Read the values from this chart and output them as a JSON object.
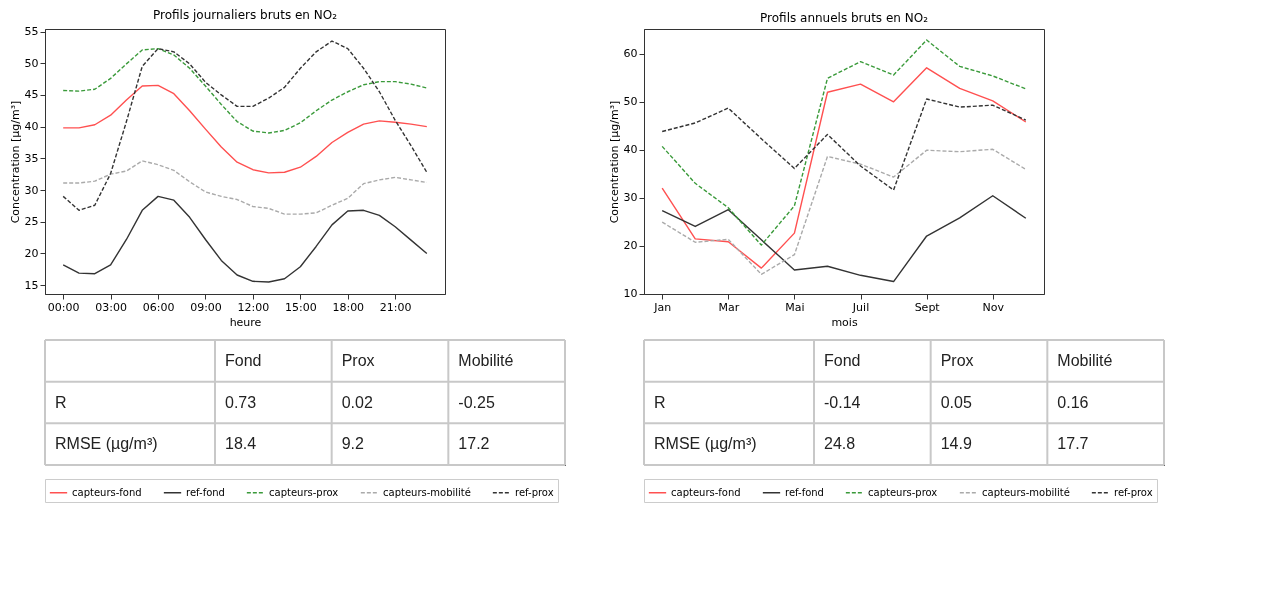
{
  "chart_data": [
    {
      "type": "line",
      "title": "Profils journaliers bruts en NO₂",
      "xlabel": "heure",
      "ylabel": "Concentration [µg/m³]",
      "x": [
        0,
        1,
        2,
        3,
        4,
        5,
        6,
        7,
        8,
        9,
        10,
        11,
        12,
        13,
        14,
        15,
        16,
        17,
        18,
        19,
        20,
        21,
        22,
        23
      ],
      "xlim": [
        -1.15,
        24.15
      ],
      "xticks": [
        {
          "value": 0,
          "label": "00:00"
        },
        {
          "value": 3,
          "label": "03:00"
        },
        {
          "value": 6,
          "label": "06:00"
        },
        {
          "value": 9,
          "label": "09:00"
        },
        {
          "value": 12,
          "label": "12:00"
        },
        {
          "value": 15,
          "label": "15:00"
        },
        {
          "value": 18,
          "label": "18:00"
        },
        {
          "value": 21,
          "label": "21:00"
        }
      ],
      "ylim": [
        13.6,
        55.4
      ],
      "yticks": [
        15,
        20,
        25,
        30,
        35,
        40,
        45,
        50,
        55
      ],
      "grid": false,
      "legend": "bottom",
      "series": [
        {
          "name": "capteurs-fond",
          "color": "#ff5050",
          "line_style": "solid",
          "values": [
            39.8,
            39.8,
            40.3,
            41.8,
            44.2,
            46.4,
            46.5,
            45.2,
            42.5,
            39.6,
            36.8,
            34.4,
            33.2,
            32.7,
            32.8,
            33.6,
            35.3,
            37.5,
            39.1,
            40.4,
            40.9,
            40.7,
            40.4,
            40.0
          ]
        },
        {
          "name": "ref-fond",
          "color": "#333333",
          "line_style": "solid",
          "values": [
            18.2,
            16.9,
            16.8,
            18.2,
            22.2,
            26.8,
            29.0,
            28.4,
            25.7,
            22.2,
            18.9,
            16.6,
            15.6,
            15.5,
            16.0,
            17.9,
            21.1,
            24.5,
            26.7,
            26.8,
            26.0,
            24.2,
            22.1,
            20.0
          ]
        },
        {
          "name": "capteurs-prox",
          "color": "#3a9a3a",
          "line_style": "dashed",
          "values": [
            45.7,
            45.6,
            45.9,
            47.6,
            49.9,
            52.1,
            52.3,
            51.3,
            49.2,
            46.4,
            43.5,
            40.8,
            39.3,
            39.0,
            39.4,
            40.6,
            42.5,
            44.2,
            45.5,
            46.6,
            47.1,
            47.1,
            46.7,
            46.1
          ]
        },
        {
          "name": "capteurs-mobilité",
          "color": "#aaaaaa",
          "line_style": "dashed",
          "values": [
            31.1,
            31.1,
            31.4,
            32.5,
            33.0,
            34.6,
            34.0,
            33.1,
            31.3,
            29.7,
            29.0,
            28.5,
            27.4,
            27.1,
            26.2,
            26.2,
            26.4,
            27.6,
            28.7,
            31.0,
            31.6,
            32.0,
            31.6,
            31.2
          ]
        },
        {
          "name": "ref-prox",
          "color": "#333333",
          "line_style": "dashed",
          "values": [
            29.0,
            26.8,
            27.6,
            32.6,
            40.8,
            49.5,
            52.3,
            51.8,
            49.9,
            47.0,
            45.0,
            43.2,
            43.2,
            44.5,
            46.2,
            49.2,
            51.8,
            53.5,
            52.3,
            49.2,
            45.5,
            41.0,
            37.0,
            32.8
          ]
        }
      ]
    },
    {
      "type": "other",
      "categories": [
        "Fond",
        "Prox",
        "Mobilité"
      ],
      "y_categories": [
        "R",
        "RMSE (µg/m³)"
      ],
      "cell_labels": [
        [
          "0.73",
          "0.02",
          "-0.25"
        ],
        [
          "18.4",
          "9.2",
          "17.2"
        ]
      ]
    },
    {
      "type": "line",
      "title": "Profils annuels bruts en NO₂",
      "xlabel": "mois",
      "ylabel": "Concentration [µg/m³]",
      "categories": [
        "Jan",
        null,
        "Mar",
        null,
        "Mai",
        null,
        "Juil",
        null,
        "Sept",
        null,
        "Nov",
        null
      ],
      "ylim": [
        9.9,
        65.2
      ],
      "yticks": [
        10,
        20,
        30,
        40,
        50,
        60
      ],
      "grid": false,
      "legend": "bottom",
      "series": [
        {
          "name": "capteurs-fond",
          "color": "#ff5050",
          "line_style": "solid",
          "values": [
            32.0,
            21.4,
            20.8,
            15.3,
            22.6,
            52.0,
            53.7,
            50.0,
            57.1,
            52.8,
            50.2,
            45.8
          ]
        },
        {
          "name": "ref-fond",
          "color": "#333333",
          "line_style": "solid",
          "values": [
            27.3,
            24.0,
            27.5,
            21.2,
            14.9,
            15.7,
            13.8,
            12.5,
            22.0,
            25.8,
            30.4,
            25.7
          ]
        },
        {
          "name": "capteurs-prox",
          "color": "#3a9a3a",
          "line_style": "dashed",
          "values": [
            40.7,
            33.0,
            27.9,
            20.1,
            28.3,
            54.9,
            58.4,
            55.6,
            62.9,
            57.4,
            55.4,
            52.7
          ]
        },
        {
          "name": "capteurs-mobilité",
          "color": "#aaaaaa",
          "line_style": "dashed",
          "values": [
            24.9,
            20.7,
            21.3,
            14.0,
            18.1,
            38.6,
            37.0,
            34.3,
            39.9,
            39.6,
            40.1,
            35.9
          ]
        },
        {
          "name": "ref-prox",
          "color": "#333333",
          "line_style": "dashed",
          "values": [
            43.8,
            45.6,
            48.7,
            42.3,
            36.1,
            43.2,
            36.6,
            31.6,
            50.6,
            48.9,
            49.3,
            46.2
          ]
        }
      ]
    },
    {
      "type": "other",
      "categories": [
        "Fond",
        "Prox",
        "Mobilité"
      ],
      "y_categories": [
        "R",
        "RMSE (µg/m³)"
      ],
      "cell_labels": [
        [
          "-0.14",
          "0.05",
          "0.16"
        ],
        [
          "24.8",
          "14.9",
          "17.7"
        ]
      ]
    }
  ]
}
